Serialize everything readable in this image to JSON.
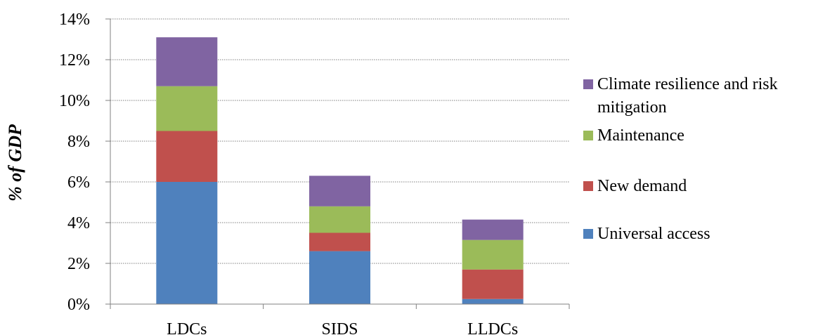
{
  "chart_data": {
    "type": "bar",
    "stacked": true,
    "categories": [
      "LDCs",
      "SIDS",
      "LLDCs"
    ],
    "series": [
      {
        "name": "Universal access",
        "values": [
          6.0,
          2.6,
          0.25
        ],
        "color": "#4f81bd"
      },
      {
        "name": "New demand",
        "values": [
          2.5,
          0.9,
          1.45
        ],
        "color": "#c0504d"
      },
      {
        "name": "Maintenance",
        "values": [
          2.2,
          1.3,
          1.45
        ],
        "color": "#9bbb59"
      },
      {
        "name": "Climate resilience and risk mitigation",
        "values": [
          2.4,
          1.5,
          1.0
        ],
        "color": "#8064a2"
      }
    ],
    "ylabel": "% of GDP",
    "ylim": [
      0,
      14
    ],
    "yticks": [
      "0%",
      "2%",
      "4%",
      "6%",
      "8%",
      "10%",
      "12%",
      "14%"
    ],
    "grid": true,
    "legend": "right"
  }
}
